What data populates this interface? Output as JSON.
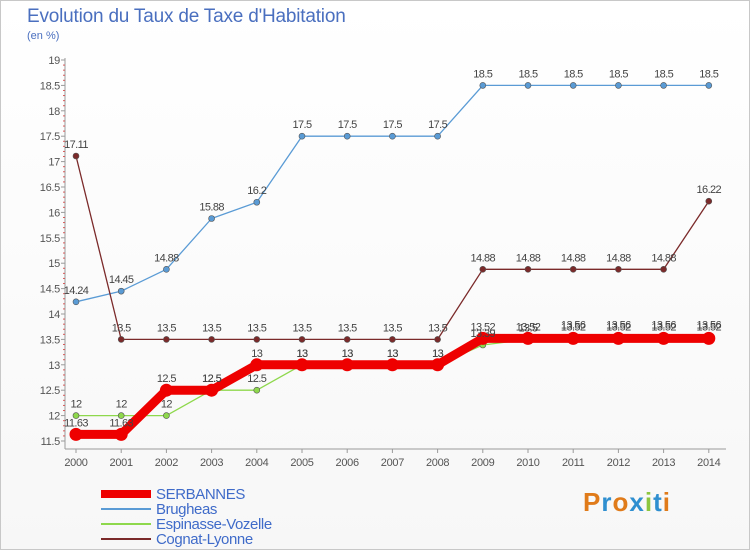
{
  "title": "Evolution du Taux de Taxe d'Habitation",
  "subtitle": "(en %)",
  "brand": {
    "text": "Proxiti",
    "colors": [
      "#e07b1a",
      "#2f8fd0",
      "#e07b1a",
      "#2f8fd0",
      "#8cc63f",
      "#2f8fd0",
      "#e07b1a"
    ]
  },
  "chart_data": {
    "type": "line",
    "x": [
      "2000",
      "2001",
      "2002",
      "2003",
      "2004",
      "2005",
      "2006",
      "2007",
      "2008",
      "2009",
      "2010",
      "2011",
      "2012",
      "2013",
      "2014"
    ],
    "ylim": [
      11.5,
      19
    ],
    "yticks": [
      "11.5",
      "12",
      "12.5",
      "13",
      "13.5",
      "14",
      "14.5",
      "15",
      "15.5",
      "16",
      "16.5",
      "17",
      "17.5",
      "18",
      "18.5",
      "19"
    ],
    "grid": false,
    "legend_position": "bottom-left",
    "series": [
      {
        "name": "SERBANNES",
        "color": "#ee0000",
        "values": [
          11.63,
          11.63,
          12.5,
          12.5,
          13,
          13,
          13,
          13,
          13,
          13.52,
          13.52,
          13.52,
          13.52,
          13.52,
          13.52
        ],
        "labels": [
          "11.63",
          "11.63",
          "12.5",
          "12.5",
          "13",
          "13",
          "13",
          "13",
          "13",
          "13.52",
          "13.52",
          "13.52",
          "13.52",
          "13.52",
          "13.52"
        ]
      },
      {
        "name": "Brugheas",
        "color": "#5a9bd5",
        "values": [
          14.24,
          14.45,
          14.88,
          15.88,
          16.2,
          17.5,
          17.5,
          17.5,
          17.5,
          18.5,
          18.5,
          18.5,
          18.5,
          18.5,
          18.5
        ],
        "labels": [
          "14.24",
          "14.45",
          "14.88",
          "15.88",
          "16.2",
          "17.5",
          "17.5",
          "17.5",
          "17.5",
          "18.5",
          "18.5",
          "18.5",
          "18.5",
          "18.5",
          "18.5"
        ]
      },
      {
        "name": "Espinasse-Vozelle",
        "color": "#8ed84c",
        "values": [
          12,
          12,
          12,
          12.5,
          12.5,
          13,
          13,
          13,
          13,
          13.39,
          13.5,
          13.56,
          13.56,
          13.56,
          13.56
        ],
        "labels": [
          "12",
          "12",
          "12",
          "12.5",
          "12.5",
          "13",
          "13",
          "13",
          "13",
          "13.39",
          "13.5",
          "13.56",
          "13.56",
          "13.56",
          "13.56"
        ]
      },
      {
        "name": "Cognat-Lyonne",
        "color": "#7b2a2a",
        "values": [
          17.11,
          13.5,
          13.5,
          13.5,
          13.5,
          13.5,
          13.5,
          13.5,
          13.5,
          14.88,
          14.88,
          14.88,
          14.88,
          14.88,
          16.22
        ],
        "labels": [
          "17.11",
          "13.5",
          "13.5",
          "13.5",
          "13.5",
          "13.5",
          "13.5",
          "13.5",
          "13.5",
          "14.88",
          "14.88",
          "14.88",
          "14.88",
          "14.88",
          "16.22"
        ]
      }
    ]
  }
}
